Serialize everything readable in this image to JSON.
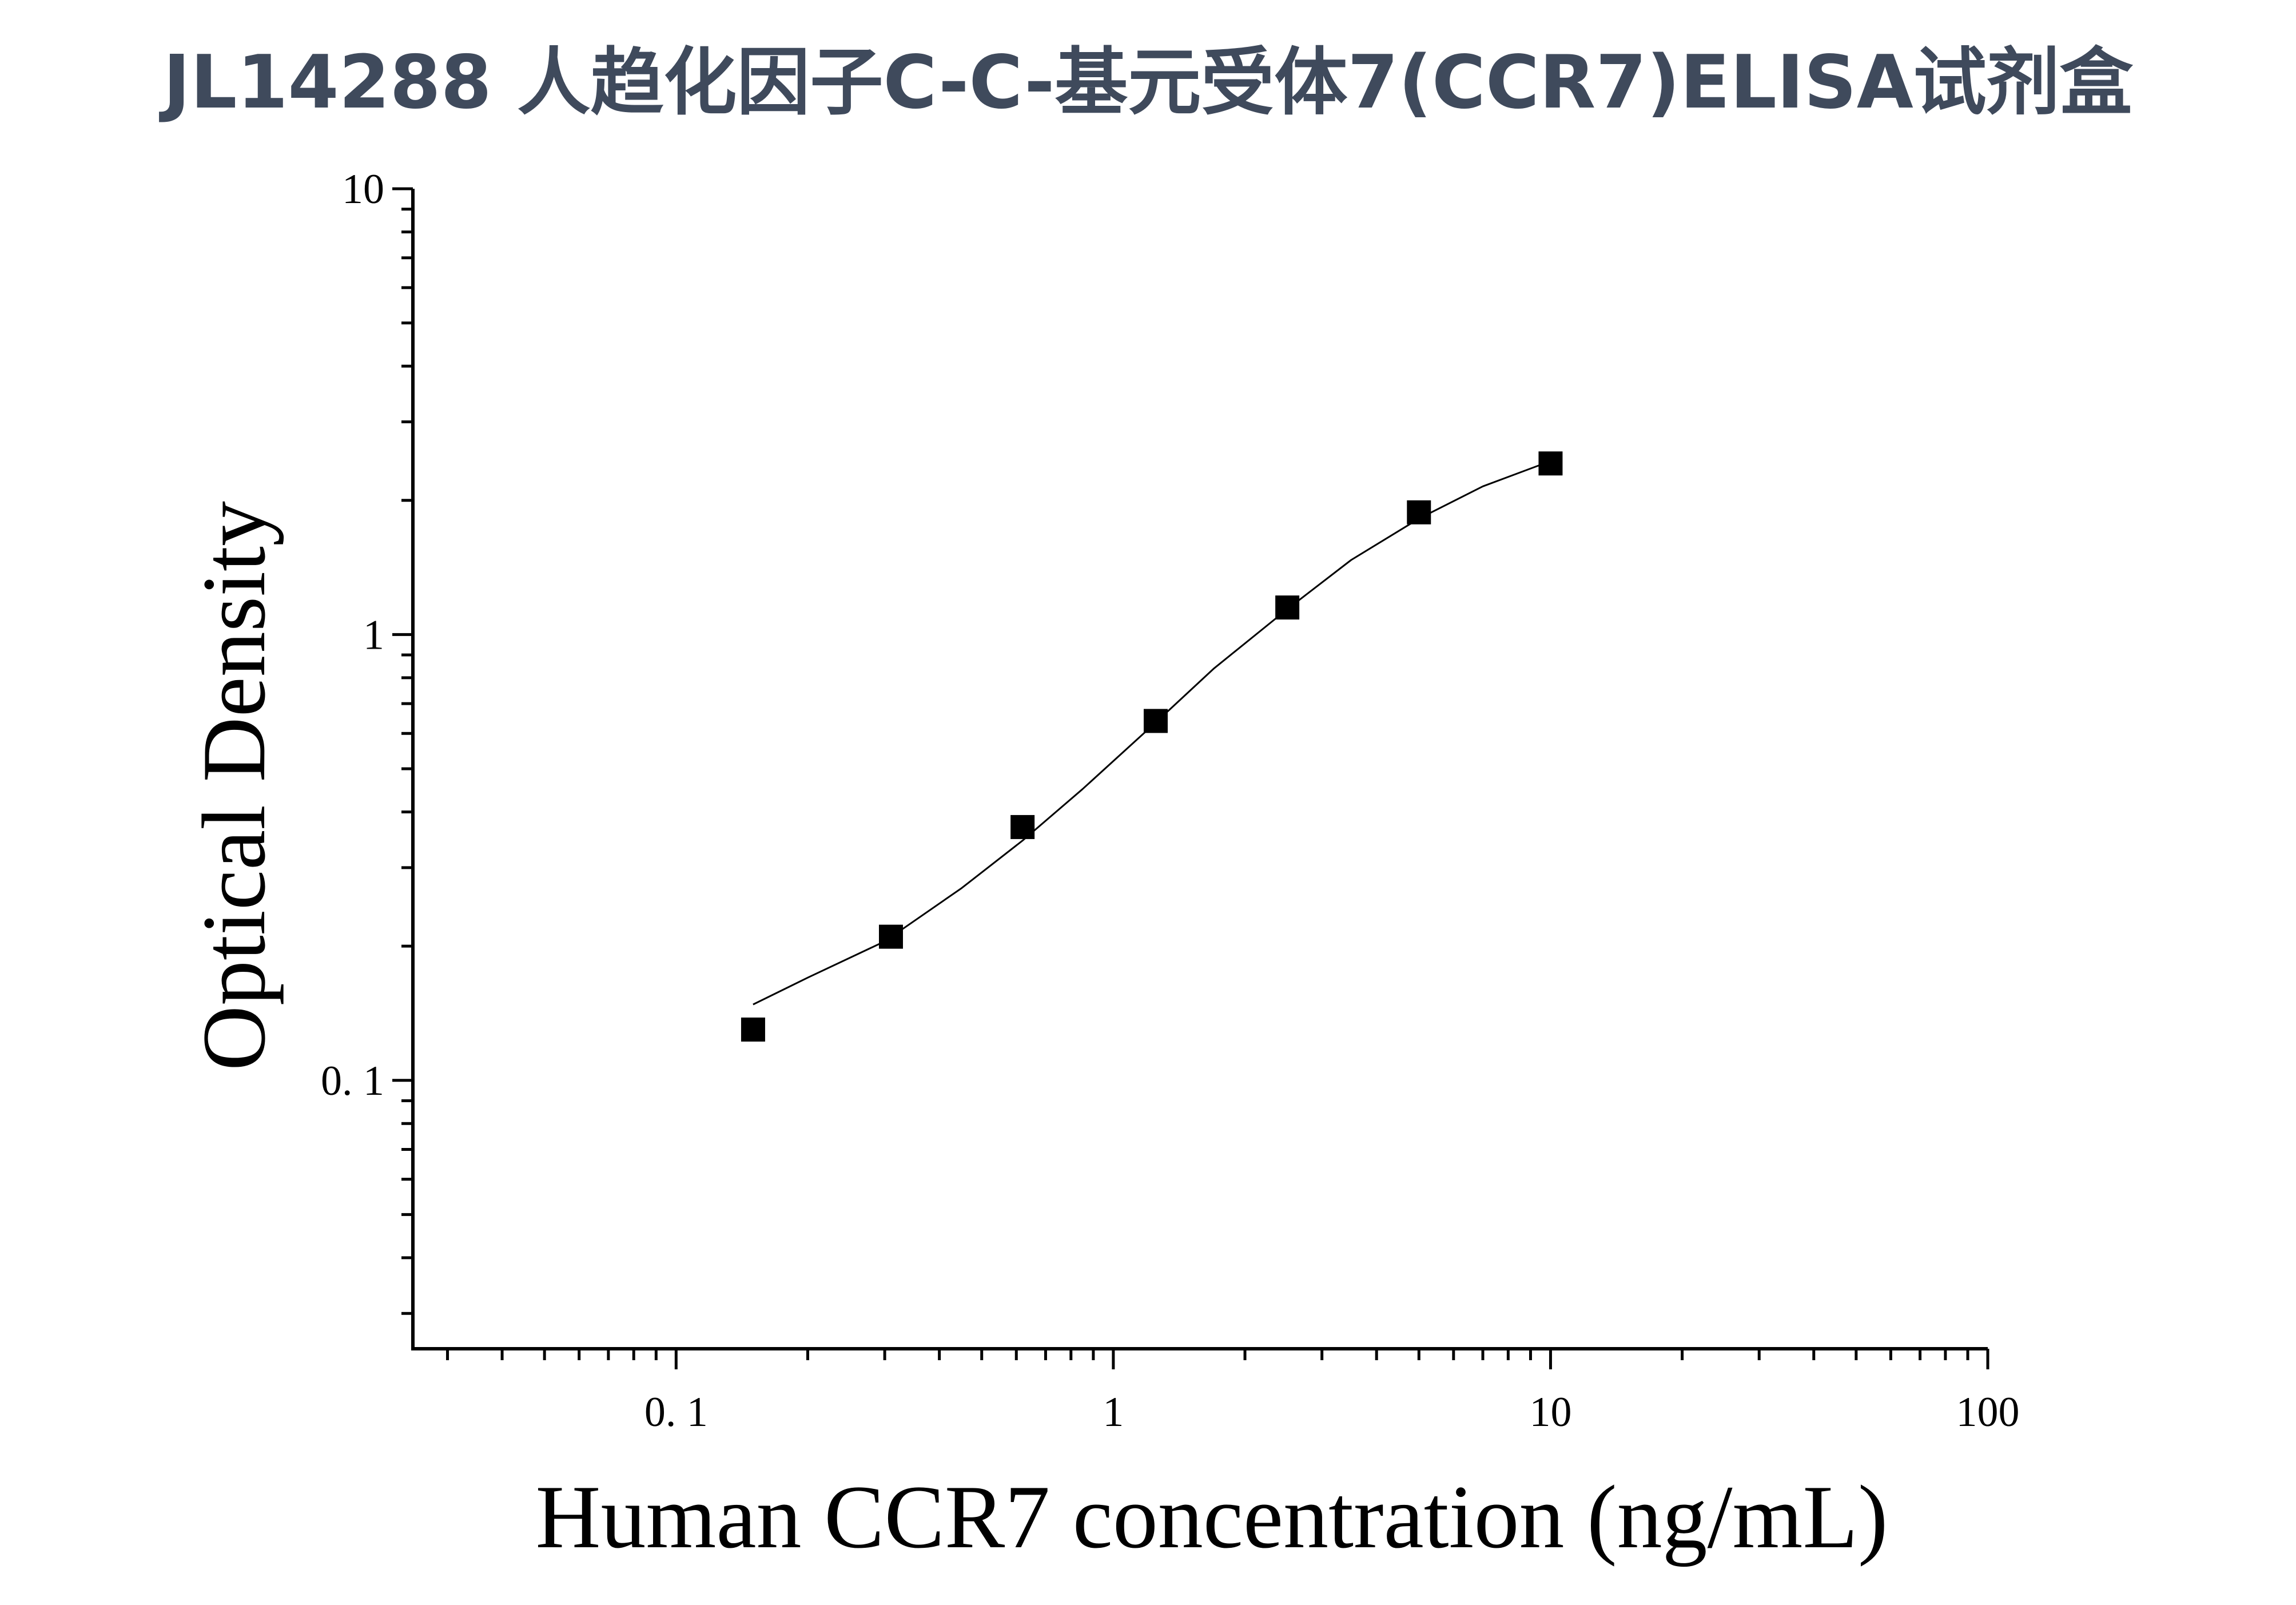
{
  "chart_data": {
    "type": "scatter",
    "title": "JL14288 人趋化因子C-C-基元受体7(CCR7)ELISA试剂盒",
    "xlabel": "Human CCR7 concentration (ng/mL)",
    "ylabel": "Optical Density",
    "x_scale": "log",
    "y_scale": "log",
    "xlim": [
      0.025,
      100
    ],
    "ylim": [
      0.025,
      10
    ],
    "x_ticks": [
      {
        "value": 0.1,
        "label": "0. 1"
      },
      {
        "value": 1,
        "label": "1"
      },
      {
        "value": 10,
        "label": "10"
      },
      {
        "value": 100,
        "label": "100"
      }
    ],
    "y_ticks": [
      {
        "value": 0.1,
        "label": "0. 1"
      },
      {
        "value": 1,
        "label": "1"
      },
      {
        "value": 10,
        "label": "10"
      }
    ],
    "grid": false,
    "series": [
      {
        "kind": "points",
        "marker": "square",
        "color": "#000000",
        "x": [
          0.15,
          0.31,
          0.62,
          1.25,
          2.5,
          5,
          10
        ],
        "y": [
          0.13,
          0.21,
          0.37,
          0.64,
          1.15,
          1.88,
          2.42
        ]
      },
      {
        "kind": "fit-curve",
        "color": "#000000",
        "x": [
          0.15,
          0.2,
          0.3,
          0.45,
          0.62,
          0.85,
          1.25,
          1.7,
          2.5,
          3.5,
          5,
          7,
          10
        ],
        "y": [
          0.148,
          0.17,
          0.205,
          0.27,
          0.345,
          0.45,
          0.635,
          0.84,
          1.14,
          1.47,
          1.82,
          2.15,
          2.45
        ]
      }
    ]
  }
}
